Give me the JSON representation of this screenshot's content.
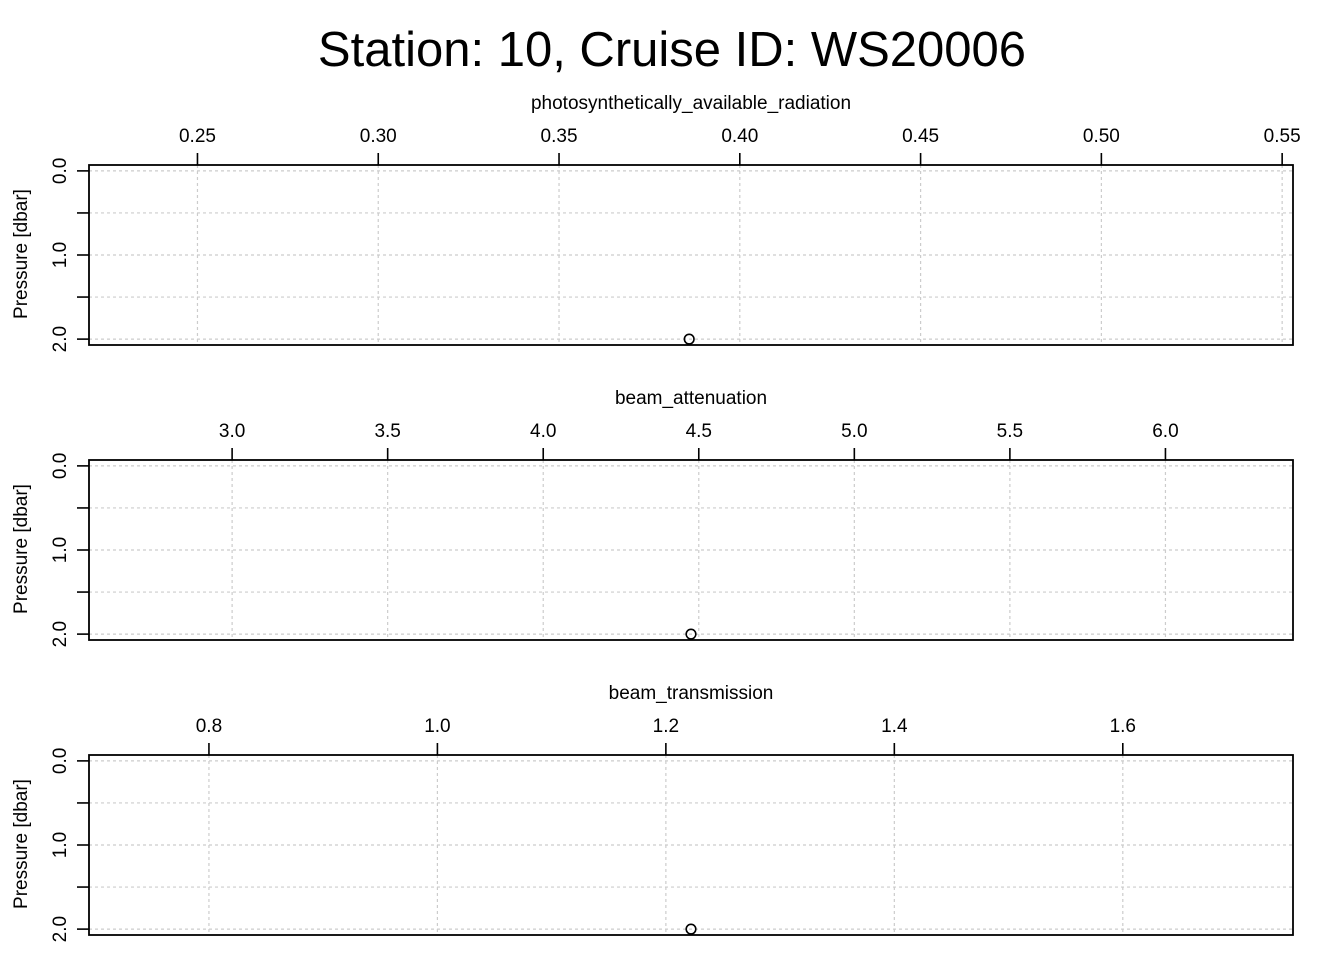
{
  "title": "Station: 10, Cruise ID: WS20006",
  "chart_data": [
    {
      "type": "scatter",
      "xlabel": "photosynthetically_available_radiation",
      "ylabel": "Pressure [dbar]",
      "xlim": [
        0.22,
        0.553
      ],
      "ylim": [
        2.07,
        -0.07
      ],
      "y_inverted": true,
      "xticks": [
        0.25,
        0.3,
        0.35,
        0.4,
        0.45,
        0.5,
        0.55
      ],
      "xtick_labels": [
        "0.25",
        "0.30",
        "0.35",
        "0.40",
        "0.45",
        "0.50",
        "0.55"
      ],
      "yticks": [
        0.0,
        0.5,
        1.0,
        1.5,
        2.0
      ],
      "ytick_labels": [
        "0.0",
        "",
        "1.0",
        "",
        "2.0"
      ],
      "grid": true,
      "points": [
        {
          "x": 0.386,
          "y": 2.0
        }
      ]
    },
    {
      "type": "scatter",
      "xlabel": "beam_attenuation",
      "ylabel": "Pressure [dbar]",
      "xlim": [
        2.54,
        6.41
      ],
      "ylim": [
        2.07,
        -0.07
      ],
      "y_inverted": true,
      "xticks": [
        3.0,
        3.5,
        4.0,
        4.5,
        5.0,
        5.5,
        6.0
      ],
      "xtick_labels": [
        "3.0",
        "3.5",
        "4.0",
        "4.5",
        "5.0",
        "5.5",
        "6.0"
      ],
      "yticks": [
        0.0,
        0.5,
        1.0,
        1.5,
        2.0
      ],
      "ytick_labels": [
        "0.0",
        "",
        "1.0",
        "",
        "2.0"
      ],
      "grid": true,
      "points": [
        {
          "x": 4.475,
          "y": 2.0
        }
      ]
    },
    {
      "type": "scatter",
      "xlabel": "beam_transmission",
      "ylabel": "Pressure [dbar]",
      "xlim": [
        0.695,
        1.749
      ],
      "ylim": [
        2.07,
        -0.07
      ],
      "y_inverted": true,
      "xticks": [
        0.8,
        1.0,
        1.2,
        1.4,
        1.6
      ],
      "xtick_labels": [
        "0.8",
        "1.0",
        "1.2",
        "1.4",
        "1.6"
      ],
      "yticks": [
        0.0,
        0.5,
        1.0,
        1.5,
        2.0
      ],
      "ytick_labels": [
        "0.0",
        "",
        "1.0",
        "",
        "2.0"
      ],
      "grid": true,
      "points": [
        {
          "x": 1.222,
          "y": 2.0
        }
      ]
    }
  ]
}
